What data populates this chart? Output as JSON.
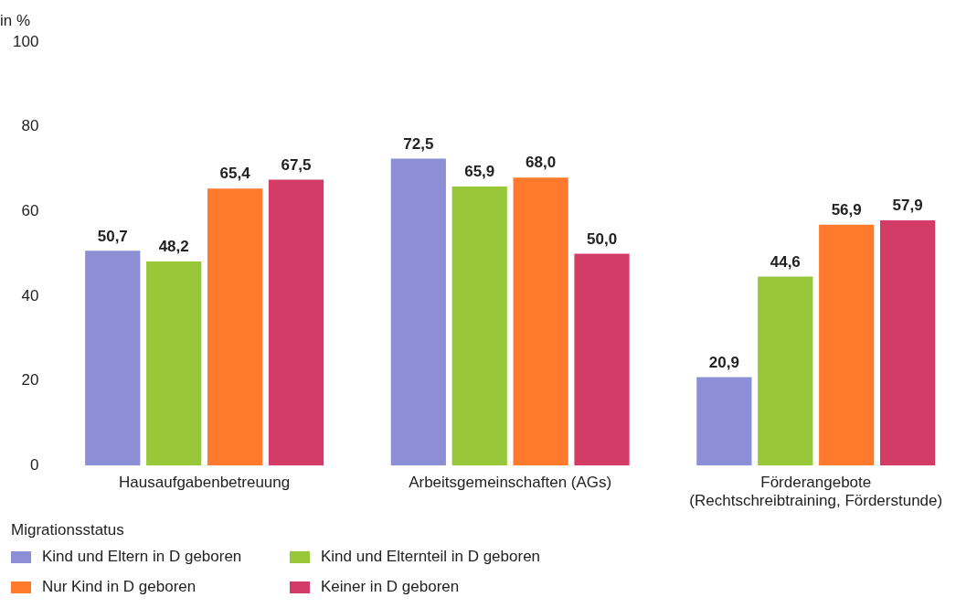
{
  "chart_data": {
    "type": "bar",
    "ylabel": "in %",
    "legend_title": "Migrationsstatus",
    "legend": "bottom left",
    "categories": [
      "Hausaufgabenbetreuung",
      "Arbeitsgemeinschaften (AGs)",
      "Förderangebote\n(Rechtschreibtraining, Förderstunde)"
    ],
    "series": [
      {
        "name": "Kind und Eltern in D geboren",
        "color": "#8c8fd6",
        "values": [
          50.7,
          72.5,
          20.9
        ],
        "value_labels": [
          "50,7",
          "72,5",
          "20,9"
        ]
      },
      {
        "name": "Kind und Elternteil in D geboren",
        "color": "#98c83a",
        "values": [
          48.2,
          65.9,
          44.6
        ],
        "value_labels": [
          "48,2",
          "65,9",
          "44,6"
        ]
      },
      {
        "name": "Nur Kind in D geboren",
        "color": "#ff7a2c",
        "values": [
          65.4,
          68.0,
          56.9
        ],
        "value_labels": [
          "65,4",
          "68,0",
          "56,9"
        ]
      },
      {
        "name": "Keiner in D geboren",
        "color": "#d23c66",
        "values": [
          67.5,
          50.0,
          57.9
        ],
        "value_labels": [
          "67,5",
          "50,0",
          "57,9"
        ]
      }
    ],
    "ylim": [
      0,
      100
    ],
    "yticks": [
      0,
      20,
      40,
      60,
      80,
      100
    ]
  }
}
